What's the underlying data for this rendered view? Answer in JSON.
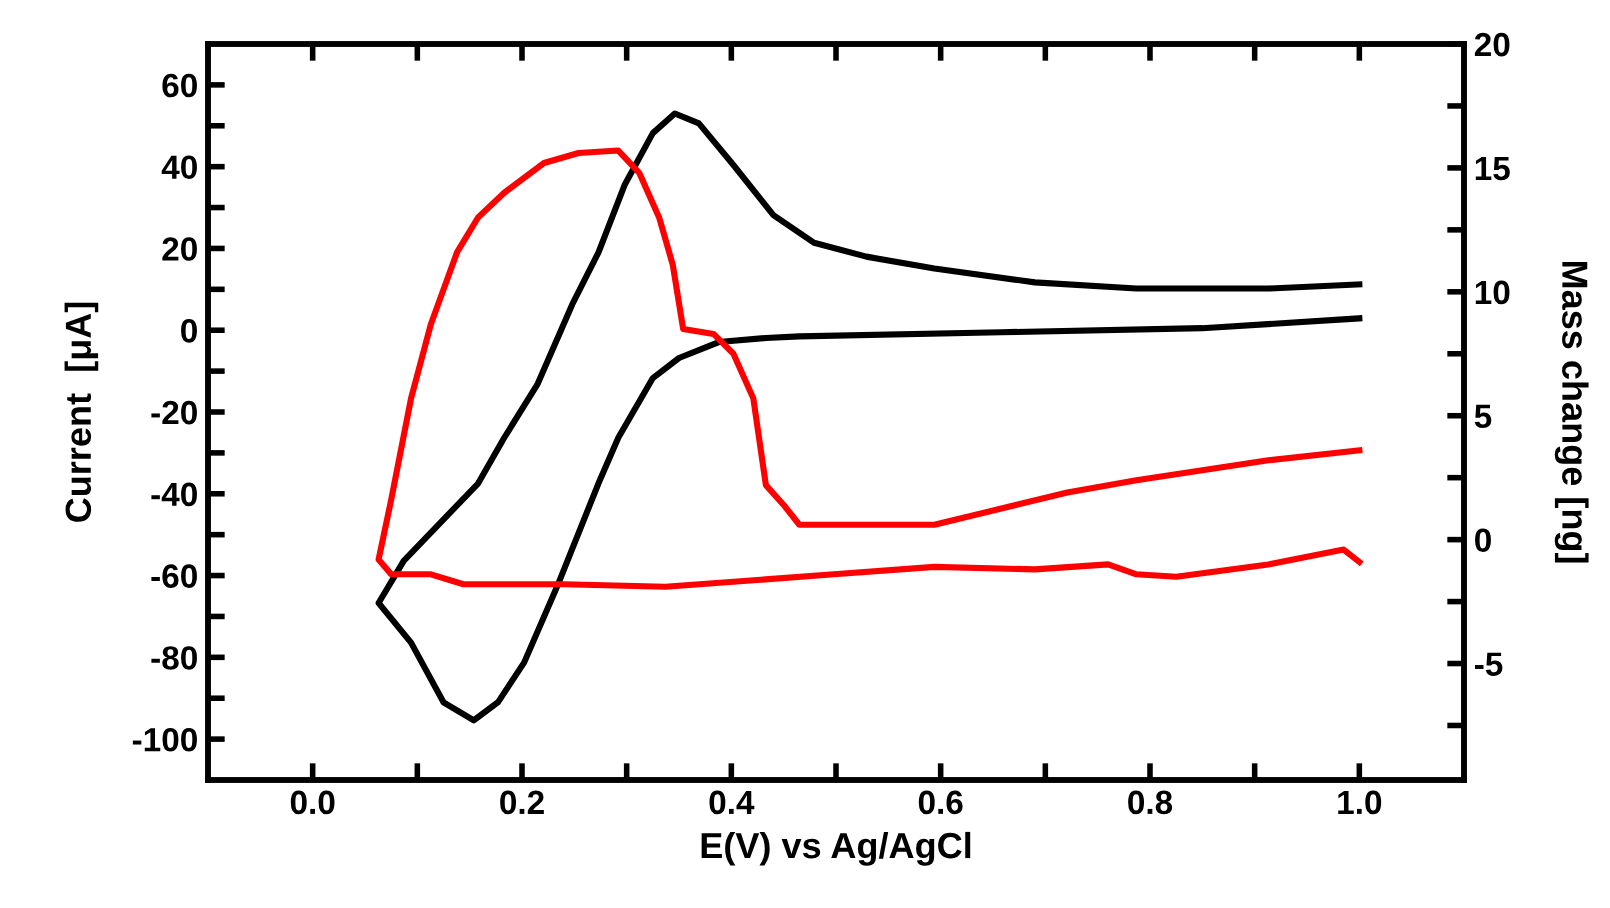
{
  "chart_data": {
    "type": "line",
    "xlabel": "E(V) vs Ag/AgCl",
    "ylabel": "Current  [μA]",
    "y2label": "Mass change [ng]",
    "xlim": [
      -0.1,
      1.1
    ],
    "xticks": [
      {
        "value": 0,
        "label": "0.0"
      },
      {
        "value": 0.1,
        "label": null
      },
      {
        "value": 0.2,
        "label": "0.2"
      },
      {
        "value": 0.3,
        "label": null
      },
      {
        "value": 0.4,
        "label": "0.4"
      },
      {
        "value": 0.5,
        "label": null
      },
      {
        "value": 0.6,
        "label": "0.6"
      },
      {
        "value": 0.7,
        "label": null
      },
      {
        "value": 0.8,
        "label": "0.8"
      },
      {
        "value": 0.9,
        "label": null
      },
      {
        "value": 1.0,
        "label": "1.0"
      }
    ],
    "ylim": [
      -110,
      70
    ],
    "yticks": [
      -100,
      {
        "value": -90,
        "label": null
      },
      -80,
      {
        "value": -70,
        "label": null
      },
      -60,
      {
        "value": -50,
        "label": null
      },
      -40,
      {
        "value": -30,
        "label": null
      },
      -20,
      {
        "value": -10,
        "label": null
      },
      0,
      {
        "value": 10,
        "label": null
      },
      20,
      {
        "value": 30,
        "label": null
      },
      40,
      {
        "value": 50,
        "label": null
      },
      60
    ],
    "y2lim": [
      -9.7,
      20
    ],
    "y2ticks": [
      {
        "value": -7.5,
        "label": null
      },
      -5,
      {
        "value": -2.5,
        "label": null
      },
      0,
      {
        "value": 2.5,
        "label": null
      },
      5,
      {
        "value": 7.5,
        "label": null
      },
      10,
      {
        "value": 12.5,
        "label": null
      },
      15,
      {
        "value": 17.5,
        "label": null
      },
      20
    ],
    "grid": false,
    "line_style": "solid",
    "marker": "none",
    "series": [
      {
        "color": "#000000",
        "x": [
          1.0,
          0.85,
          0.658,
          0.465,
          0.433,
          0.388,
          0.35,
          0.325,
          0.292,
          0.273,
          0.235,
          0.202,
          0.177,
          0.154,
          0.125,
          0.094,
          0.063,
          0.087,
          0.158,
          0.183,
          0.215,
          0.248,
          0.273,
          0.298,
          0.325,
          0.346,
          0.369,
          0.402,
          0.44,
          0.479,
          0.529,
          0.594,
          0.69,
          0.787,
          0.913,
          1.0
        ],
        "values": [
          2.9,
          0.5,
          -0.5,
          -1.5,
          -1.9,
          -2.9,
          -6.8,
          -11.7,
          -26.3,
          -37.5,
          -61.8,
          -81.3,
          -91,
          -95.4,
          -91,
          -76.4,
          -66.7,
          -56.4,
          -37.5,
          -26.3,
          -13.1,
          6.3,
          19.0,
          35.5,
          48.2,
          53.0,
          50.6,
          40.4,
          28.2,
          21.4,
          18.0,
          15.1,
          11.7,
          10.2,
          10.2,
          11.2
        ]
      },
      {
        "color": "#ff0000",
        "axis": "y2",
        "x": [
          1.0,
          0.985,
          0.913,
          0.825,
          0.787,
          0.76,
          0.69,
          0.594,
          0.498,
          0.337,
          0.24,
          0.144,
          0.113,
          0.075,
          0.063,
          0.075,
          0.094,
          0.113,
          0.138,
          0.158,
          0.183,
          0.221,
          0.254,
          0.292,
          0.312,
          0.331,
          0.344,
          0.354,
          0.383,
          0.402,
          0.421,
          0.433,
          0.45,
          0.465,
          0.529,
          0.594,
          0.721,
          0.787,
          0.913,
          1.0
        ],
        "values": [
          -0.9,
          -0.4,
          -1.0,
          -1.5,
          -1.4,
          -1.0,
          -1.2,
          -1.1,
          -1.4,
          -1.9,
          -1.8,
          -1.8,
          -1.4,
          -1.4,
          -0.8,
          1.6,
          5.7,
          8.7,
          11.6,
          13.0,
          14.0,
          15.2,
          15.6,
          15.7,
          14.8,
          13.0,
          11.1,
          8.5,
          8.3,
          7.5,
          5.7,
          2.2,
          1.4,
          0.6,
          0.6,
          0.6,
          1.9,
          2.4,
          3.2,
          3.6
        ]
      }
    ]
  }
}
